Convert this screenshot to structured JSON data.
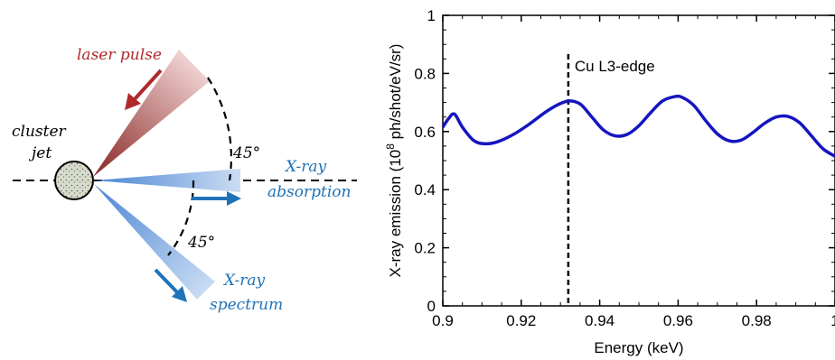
{
  "diagram": {
    "labels": {
      "laser_pulse": "laser pulse",
      "cluster_line1": "cluster",
      "cluster_line2": "jet",
      "angle_top": "45°",
      "angle_bottom": "45°",
      "xray_abs_line1": "X-ray",
      "xray_abs_line2": "absorption",
      "xray_spec_line1": "X-ray",
      "xray_spec_line2": "spectrum"
    },
    "colors": {
      "laser": "#b0292c",
      "xray": "#1f73b7",
      "xray_light": "#8fb8e6",
      "laser_light": "#e8c3c3"
    }
  },
  "chart_data": {
    "type": "line",
    "title": "",
    "xlabel": "Energy (keV)",
    "ylabel_prefix": "X-ray emission (10",
    "ylabel_sup": "8",
    "ylabel_suffix": " ph/shot/eV/sr)",
    "xlim": [
      0.9,
      1.0
    ],
    "ylim": [
      0,
      1
    ],
    "xticks": [
      0.9,
      0.92,
      0.94,
      0.96,
      0.98,
      1.0
    ],
    "xtick_labels": [
      "0.9",
      "0.92",
      "0.94",
      "0.96",
      "0.98",
      "1"
    ],
    "yticks": [
      0,
      0.2,
      0.4,
      0.6,
      0.8,
      1.0
    ],
    "ytick_labels": [
      "0",
      "0.2",
      "0.4",
      "0.6",
      "0.8",
      "1"
    ],
    "grid": false,
    "series": [
      {
        "color": "#1515c0",
        "x": [
          0.9,
          0.9015,
          0.903,
          0.905,
          0.908,
          0.911,
          0.914,
          0.918,
          0.922,
          0.926,
          0.929,
          0.932,
          0.935,
          0.938,
          0.941,
          0.944,
          0.947,
          0.95,
          0.953,
          0.956,
          0.959,
          0.961,
          0.964,
          0.967,
          0.97,
          0.973,
          0.976,
          0.979,
          0.982,
          0.985,
          0.988,
          0.991,
          0.994,
          0.997,
          1.0
        ],
        "y": [
          0.615,
          0.645,
          0.66,
          0.615,
          0.568,
          0.558,
          0.565,
          0.59,
          0.625,
          0.665,
          0.69,
          0.705,
          0.695,
          0.65,
          0.605,
          0.585,
          0.59,
          0.62,
          0.665,
          0.705,
          0.72,
          0.718,
          0.69,
          0.638,
          0.592,
          0.568,
          0.57,
          0.596,
          0.628,
          0.65,
          0.652,
          0.63,
          0.585,
          0.54,
          0.515
        ]
      }
    ],
    "annotations": [
      {
        "text": "Cu L3-edge",
        "x": 0.932,
        "style": "vertical-dashed-line"
      }
    ]
  }
}
